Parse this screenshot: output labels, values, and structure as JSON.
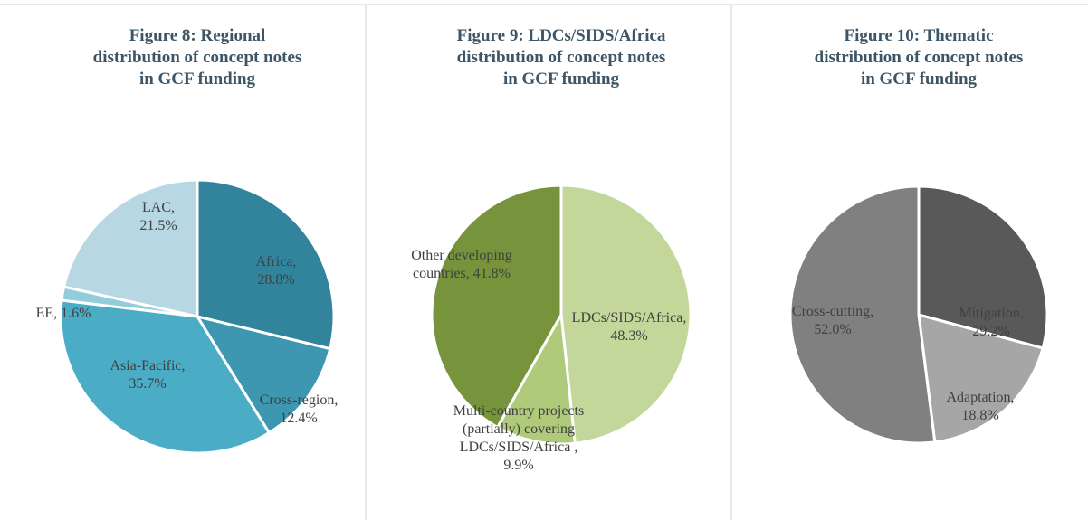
{
  "chart_data": [
    {
      "type": "pie",
      "title": "Figure 8: Regional distribution of concept notes in GCF funding",
      "values": [
        28.8,
        12.4,
        35.7,
        1.6,
        21.5
      ],
      "value_labels": [
        "Africa, 28.8%",
        "Cross-region, 12.4%",
        "Asia-Pacific, 35.7%",
        "EE, 1.6%",
        "LAC, 21.5%"
      ],
      "colors": [
        "#31849b",
        "#3d97b0",
        "#4bacc6",
        "#92cddc",
        "#b7d7e3"
      ]
    },
    {
      "type": "pie",
      "title": "Figure 9: LDCs/SIDS/Africa distribution of concept notes in GCF funding",
      "values": [
        48.3,
        9.9,
        41.8
      ],
      "value_labels": [
        "LDCs/SIDS/Africa, 48.3%",
        "Multi-country projects (partially) covering LDCs/SIDS/Africa , 9.9%",
        "Other developing countries, 41.8%"
      ],
      "colors": [
        "#c4d79b",
        "#b0ca7c",
        "#77933c"
      ]
    },
    {
      "type": "pie",
      "title": "Figure 10: Thematic distribution of concept notes in GCF funding",
      "values": [
        29.2,
        18.8,
        52.0
      ],
      "value_labels": [
        "Mitigation, 29.2%",
        "Adaptation, 18.8%",
        "Cross-cutting, 52.0%"
      ],
      "colors": [
        "#595959",
        "#a6a6a6",
        "#808080"
      ]
    }
  ]
}
